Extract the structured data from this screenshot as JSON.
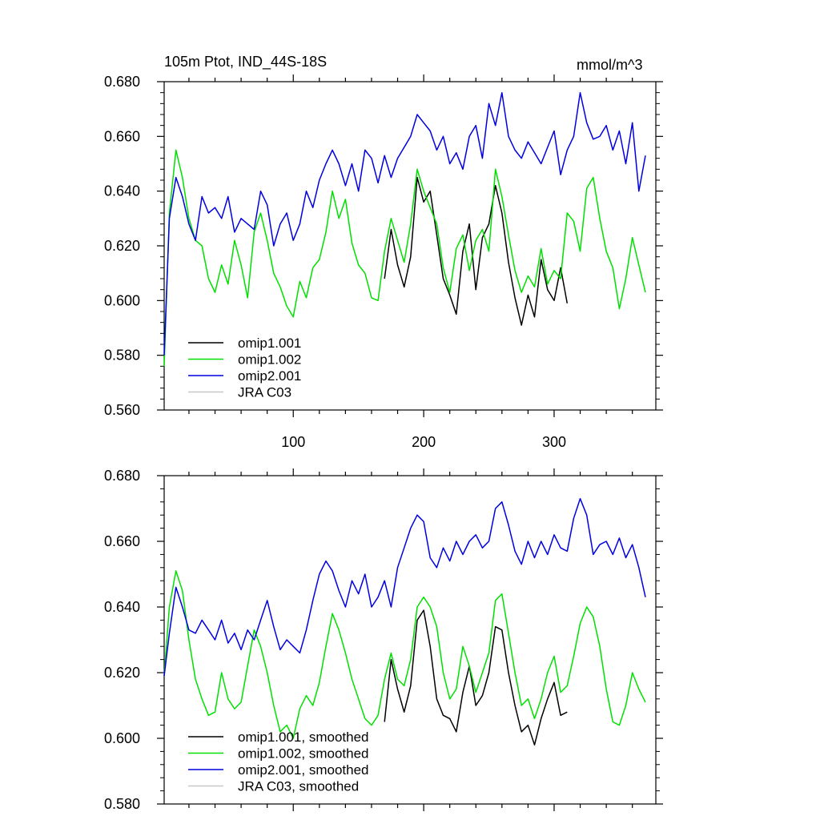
{
  "figure": {
    "title_left": "105m Ptot, IND_44S-18S",
    "title_right": "mmol/m^3"
  },
  "chart_data": [
    {
      "type": "line",
      "panel": "top",
      "xlim": [
        1,
        378
      ],
      "ylim": [
        0.56,
        0.68
      ],
      "yticks": [
        0.56,
        0.58,
        0.6,
        0.62,
        0.64,
        0.66,
        0.68
      ],
      "ytick_labels": [
        "0.560",
        "0.580",
        "0.600",
        "0.620",
        "0.640",
        "0.660",
        "0.680"
      ],
      "xticks": [
        100,
        200,
        300
      ],
      "xtick_labels": [
        "100",
        "200",
        "300"
      ],
      "legend_location": "lower-left",
      "series": [
        {
          "name": "omip1.001",
          "color": "#000000",
          "x": [
            170,
            175,
            180,
            185,
            190,
            195,
            200,
            205,
            210,
            215,
            220,
            225,
            230,
            235,
            240,
            245,
            250,
            255,
            260,
            265,
            270,
            275,
            280,
            285,
            290,
            295,
            300,
            305,
            310
          ],
          "y": [
            0.608,
            0.626,
            0.613,
            0.605,
            0.616,
            0.645,
            0.636,
            0.64,
            0.624,
            0.608,
            0.602,
            0.595,
            0.618,
            0.628,
            0.604,
            0.623,
            0.628,
            0.642,
            0.632,
            0.614,
            0.601,
            0.591,
            0.602,
            0.594,
            0.615,
            0.604,
            0.6,
            0.612,
            0.599
          ]
        },
        {
          "name": "omip1.002",
          "color": "#00e000",
          "x": [
            1,
            5,
            10,
            15,
            20,
            25,
            30,
            35,
            40,
            45,
            50,
            55,
            60,
            65,
            70,
            75,
            80,
            85,
            90,
            95,
            100,
            105,
            110,
            115,
            120,
            125,
            130,
            135,
            140,
            145,
            150,
            155,
            160,
            165,
            170,
            175,
            180,
            185,
            190,
            195,
            200,
            205,
            210,
            215,
            220,
            225,
            230,
            235,
            240,
            245,
            250,
            255,
            260,
            265,
            270,
            275,
            280,
            285,
            290,
            295,
            300,
            305,
            310,
            315,
            320,
            325,
            330,
            335,
            340,
            345,
            350,
            355,
            360,
            365,
            370
          ],
          "y": [
            0.576,
            0.632,
            0.655,
            0.645,
            0.63,
            0.622,
            0.62,
            0.608,
            0.603,
            0.613,
            0.606,
            0.622,
            0.613,
            0.601,
            0.625,
            0.632,
            0.622,
            0.61,
            0.605,
            0.598,
            0.594,
            0.607,
            0.601,
            0.612,
            0.615,
            0.625,
            0.64,
            0.63,
            0.637,
            0.621,
            0.613,
            0.61,
            0.601,
            0.6,
            0.618,
            0.63,
            0.622,
            0.614,
            0.628,
            0.648,
            0.64,
            0.634,
            0.628,
            0.612,
            0.603,
            0.619,
            0.624,
            0.611,
            0.622,
            0.626,
            0.618,
            0.648,
            0.638,
            0.624,
            0.611,
            0.603,
            0.609,
            0.605,
            0.619,
            0.606,
            0.611,
            0.608,
            0.632,
            0.629,
            0.618,
            0.641,
            0.645,
            0.63,
            0.618,
            0.612,
            0.597,
            0.608,
            0.623,
            0.613,
            0.603
          ]
        },
        {
          "name": "omip2.001",
          "color": "#0000e0",
          "x": [
            1,
            5,
            10,
            15,
            20,
            25,
            30,
            35,
            40,
            45,
            50,
            55,
            60,
            65,
            70,
            75,
            80,
            85,
            90,
            95,
            100,
            105,
            110,
            115,
            120,
            125,
            130,
            135,
            140,
            145,
            150,
            155,
            160,
            165,
            170,
            175,
            180,
            185,
            190,
            195,
            200,
            205,
            210,
            215,
            220,
            225,
            230,
            235,
            240,
            245,
            250,
            255,
            260,
            265,
            270,
            275,
            280,
            285,
            290,
            295,
            300,
            305,
            310,
            315,
            320,
            325,
            330,
            335,
            340,
            345,
            350,
            355,
            360,
            365,
            370
          ],
          "y": [
            0.58,
            0.63,
            0.645,
            0.638,
            0.628,
            0.622,
            0.638,
            0.632,
            0.634,
            0.63,
            0.638,
            0.625,
            0.63,
            0.628,
            0.626,
            0.64,
            0.635,
            0.62,
            0.628,
            0.632,
            0.622,
            0.628,
            0.64,
            0.634,
            0.644,
            0.65,
            0.655,
            0.65,
            0.642,
            0.65,
            0.64,
            0.655,
            0.652,
            0.643,
            0.653,
            0.645,
            0.652,
            0.656,
            0.66,
            0.668,
            0.665,
            0.662,
            0.655,
            0.66,
            0.65,
            0.654,
            0.648,
            0.66,
            0.664,
            0.652,
            0.672,
            0.664,
            0.676,
            0.66,
            0.655,
            0.652,
            0.658,
            0.654,
            0.65,
            0.656,
            0.662,
            0.646,
            0.655,
            0.66,
            0.676,
            0.665,
            0.659,
            0.66,
            0.664,
            0.655,
            0.662,
            0.65,
            0.665,
            0.64,
            0.653
          ]
        },
        {
          "name": "JRA C03",
          "color": "#c8c8c8",
          "x": [],
          "y": []
        }
      ]
    },
    {
      "type": "line",
      "panel": "bottom",
      "xlim": [
        1,
        378
      ],
      "ylim": [
        0.58,
        0.68
      ],
      "yticks": [
        0.58,
        0.6,
        0.62,
        0.64,
        0.66,
        0.68
      ],
      "ytick_labels": [
        "0.580",
        "0.600",
        "0.620",
        "0.640",
        "0.660",
        "0.680"
      ],
      "xticks": [
        100,
        200,
        300
      ],
      "xtick_labels": [],
      "legend_location": "lower-left",
      "series": [
        {
          "name": "omip1.001, smoothed",
          "color": "#000000",
          "x": [
            170,
            175,
            180,
            185,
            190,
            195,
            200,
            205,
            210,
            215,
            220,
            225,
            230,
            235,
            240,
            245,
            250,
            255,
            260,
            265,
            270,
            275,
            280,
            285,
            290,
            295,
            300,
            305,
            310
          ],
          "y": [
            0.605,
            0.624,
            0.615,
            0.608,
            0.616,
            0.636,
            0.639,
            0.628,
            0.612,
            0.607,
            0.606,
            0.602,
            0.614,
            0.622,
            0.61,
            0.613,
            0.62,
            0.634,
            0.633,
            0.62,
            0.61,
            0.602,
            0.604,
            0.598,
            0.606,
            0.612,
            0.617,
            0.607,
            0.608
          ]
        },
        {
          "name": "omip1.002, smoothed",
          "color": "#00e000",
          "x": [
            1,
            5,
            10,
            15,
            20,
            25,
            30,
            35,
            40,
            45,
            50,
            55,
            60,
            65,
            70,
            75,
            80,
            85,
            90,
            95,
            100,
            105,
            110,
            115,
            120,
            125,
            130,
            135,
            140,
            145,
            150,
            155,
            160,
            165,
            170,
            175,
            180,
            185,
            190,
            195,
            200,
            205,
            210,
            215,
            220,
            225,
            230,
            235,
            240,
            245,
            250,
            255,
            260,
            265,
            270,
            275,
            280,
            285,
            290,
            295,
            300,
            305,
            310,
            315,
            320,
            325,
            330,
            335,
            340,
            345,
            350,
            355,
            360,
            365,
            370
          ],
          "y": [
            0.619,
            0.64,
            0.651,
            0.645,
            0.63,
            0.618,
            0.612,
            0.607,
            0.608,
            0.62,
            0.612,
            0.609,
            0.611,
            0.622,
            0.633,
            0.628,
            0.62,
            0.61,
            0.602,
            0.604,
            0.6,
            0.609,
            0.613,
            0.61,
            0.617,
            0.628,
            0.638,
            0.633,
            0.626,
            0.618,
            0.612,
            0.606,
            0.604,
            0.607,
            0.618,
            0.626,
            0.618,
            0.616,
            0.624,
            0.64,
            0.643,
            0.64,
            0.634,
            0.62,
            0.612,
            0.615,
            0.628,
            0.622,
            0.614,
            0.62,
            0.626,
            0.642,
            0.644,
            0.632,
            0.62,
            0.61,
            0.612,
            0.606,
            0.612,
            0.62,
            0.625,
            0.614,
            0.616,
            0.625,
            0.635,
            0.64,
            0.637,
            0.628,
            0.615,
            0.605,
            0.604,
            0.61,
            0.62,
            0.615,
            0.611
          ]
        },
        {
          "name": "omip2.001, smoothed",
          "color": "#0000e0",
          "x": [
            1,
            5,
            10,
            15,
            20,
            25,
            30,
            35,
            40,
            45,
            50,
            55,
            60,
            65,
            70,
            75,
            80,
            85,
            90,
            95,
            100,
            105,
            110,
            115,
            120,
            125,
            130,
            135,
            140,
            145,
            150,
            155,
            160,
            165,
            170,
            175,
            180,
            185,
            190,
            195,
            200,
            205,
            210,
            215,
            220,
            225,
            230,
            235,
            240,
            245,
            250,
            255,
            260,
            265,
            270,
            275,
            280,
            285,
            290,
            295,
            300,
            305,
            310,
            315,
            320,
            325,
            330,
            335,
            340,
            345,
            350,
            355,
            360,
            365,
            370
          ],
          "y": [
            0.619,
            0.632,
            0.646,
            0.64,
            0.633,
            0.632,
            0.636,
            0.633,
            0.63,
            0.636,
            0.629,
            0.632,
            0.627,
            0.633,
            0.63,
            0.636,
            0.642,
            0.634,
            0.627,
            0.63,
            0.628,
            0.626,
            0.633,
            0.642,
            0.65,
            0.654,
            0.651,
            0.645,
            0.64,
            0.648,
            0.644,
            0.65,
            0.64,
            0.643,
            0.648,
            0.64,
            0.652,
            0.658,
            0.664,
            0.668,
            0.666,
            0.655,
            0.652,
            0.658,
            0.654,
            0.66,
            0.656,
            0.66,
            0.662,
            0.658,
            0.66,
            0.67,
            0.672,
            0.665,
            0.657,
            0.653,
            0.66,
            0.655,
            0.66,
            0.656,
            0.662,
            0.658,
            0.657,
            0.667,
            0.673,
            0.668,
            0.656,
            0.659,
            0.66,
            0.656,
            0.661,
            0.655,
            0.659,
            0.652,
            0.643
          ]
        },
        {
          "name": "JRA C03, smoothed",
          "color": "#c8c8c8",
          "x": [],
          "y": []
        }
      ]
    }
  ]
}
